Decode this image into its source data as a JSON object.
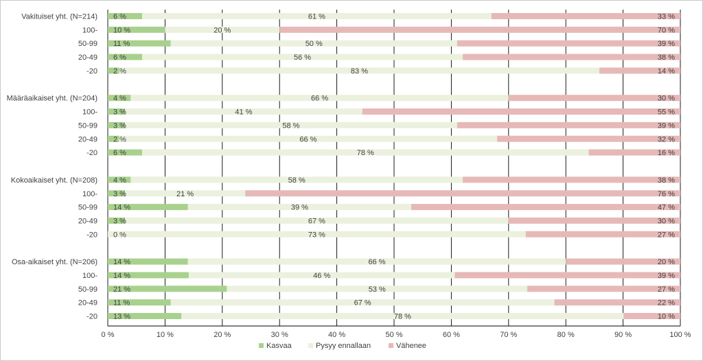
{
  "chart_data": {
    "type": "bar",
    "orientation": "horizontal",
    "stacked": true,
    "title": "",
    "xlabel": "",
    "ylabel": "",
    "xlim": [
      0,
      100
    ],
    "x_ticks": [
      "0 %",
      "10 %",
      "20 %",
      "30 %",
      "40 %",
      "50 %",
      "60 %",
      "70 %",
      "80 %",
      "90 %",
      "100 %"
    ],
    "legend_position": "bottom",
    "legend": [
      "Kasvaa",
      "Pysyy ennallaan",
      "Vähenee"
    ],
    "colors": {
      "Kasvaa": "#a9d18e",
      "Pysyy ennallaan": "#ebf1de",
      "Vähenee": "#e6b9b8"
    },
    "groups": [
      {
        "name": "Vakituiset yht. (N=214)",
        "rows": [
          {
            "label": "Vakituiset yht. (N=214)",
            "kasvaa": 6,
            "pysyy": 61,
            "vahenee": 33,
            "labels": [
              "6 %",
              "61 %",
              "33 %"
            ]
          },
          {
            "label": "100-",
            "kasvaa": 10,
            "pysyy": 20,
            "vahenee": 70,
            "labels": [
              "10 %",
              "20 %",
              "70 %"
            ]
          },
          {
            "label": "50-99",
            "kasvaa": 11,
            "pysyy": 50,
            "vahenee": 39,
            "labels": [
              "11 %",
              "50 %",
              "39 %"
            ]
          },
          {
            "label": "20-49",
            "kasvaa": 6,
            "pysyy": 56,
            "vahenee": 38,
            "labels": [
              "6 %",
              "56 %",
              "38 %"
            ]
          },
          {
            "label": "-20",
            "kasvaa": 2,
            "pysyy": 83,
            "vahenee": 14,
            "labels": [
              "2 %",
              "83 %",
              "14 %"
            ]
          }
        ]
      },
      {
        "name": "Määräaikaiset yht. (N=204)",
        "rows": [
          {
            "label": "Määräaikaiset yht. (N=204)",
            "kasvaa": 4,
            "pysyy": 66,
            "vahenee": 30,
            "labels": [
              "4 %",
              "66 %",
              "30 %"
            ]
          },
          {
            "label": "100-",
            "kasvaa": 3,
            "pysyy": 41,
            "vahenee": 55,
            "labels": [
              "3 %",
              "41 %",
              "55 %"
            ]
          },
          {
            "label": "50-99",
            "kasvaa": 3,
            "pysyy": 58,
            "vahenee": 39,
            "labels": [
              "3 %",
              "58 %",
              "39 %"
            ]
          },
          {
            "label": "20-49",
            "kasvaa": 2,
            "pysyy": 66,
            "vahenee": 32,
            "labels": [
              "2 %",
              "66 %",
              "32 %"
            ]
          },
          {
            "label": "-20",
            "kasvaa": 6,
            "pysyy": 78,
            "vahenee": 16,
            "labels": [
              "6 %",
              "78 %",
              "16 %"
            ]
          }
        ]
      },
      {
        "name": "Kokoaikaiset yht. (N=208)",
        "rows": [
          {
            "label": "Kokoaikaiset yht. (N=208)",
            "kasvaa": 4,
            "pysyy": 58,
            "vahenee": 38,
            "labels": [
              "4 %",
              "58 %",
              "38 %"
            ]
          },
          {
            "label": "100-",
            "kasvaa": 3,
            "pysyy": 21,
            "vahenee": 76,
            "labels": [
              "3 %",
              "21 %",
              "76 %"
            ]
          },
          {
            "label": "50-99",
            "kasvaa": 14,
            "pysyy": 39,
            "vahenee": 47,
            "labels": [
              "14 %",
              "39 %",
              "47 %"
            ]
          },
          {
            "label": "20-49",
            "kasvaa": 3,
            "pysyy": 67,
            "vahenee": 30,
            "labels": [
              "3 %",
              "67 %",
              "30 %"
            ]
          },
          {
            "label": "-20",
            "kasvaa": 0,
            "pysyy": 73,
            "vahenee": 27,
            "labels": [
              "0 %",
              "73 %",
              "27 %"
            ]
          }
        ]
      },
      {
        "name": "Osa-aikaiset yht. (N=206)",
        "rows": [
          {
            "label": "Osa-aikaiset yht. (N=206)",
            "kasvaa": 14,
            "pysyy": 66,
            "vahenee": 20,
            "labels": [
              "14 %",
              "66 %",
              "20 %"
            ]
          },
          {
            "label": "100-",
            "kasvaa": 14,
            "pysyy": 46,
            "vahenee": 39,
            "labels": [
              "14 %",
              "46 %",
              "39 %"
            ]
          },
          {
            "label": "50-99",
            "kasvaa": 21,
            "pysyy": 53,
            "vahenee": 27,
            "labels": [
              "21 %",
              "53 %",
              "27 %"
            ]
          },
          {
            "label": "20-49",
            "kasvaa": 11,
            "pysyy": 67,
            "vahenee": 22,
            "labels": [
              "11 %",
              "67 %",
              "22 %"
            ]
          },
          {
            "label": "-20",
            "kasvaa": 13,
            "pysyy": 78,
            "vahenee": 10,
            "labels": [
              "13 %",
              "78 %",
              "10 %"
            ]
          }
        ]
      }
    ]
  }
}
